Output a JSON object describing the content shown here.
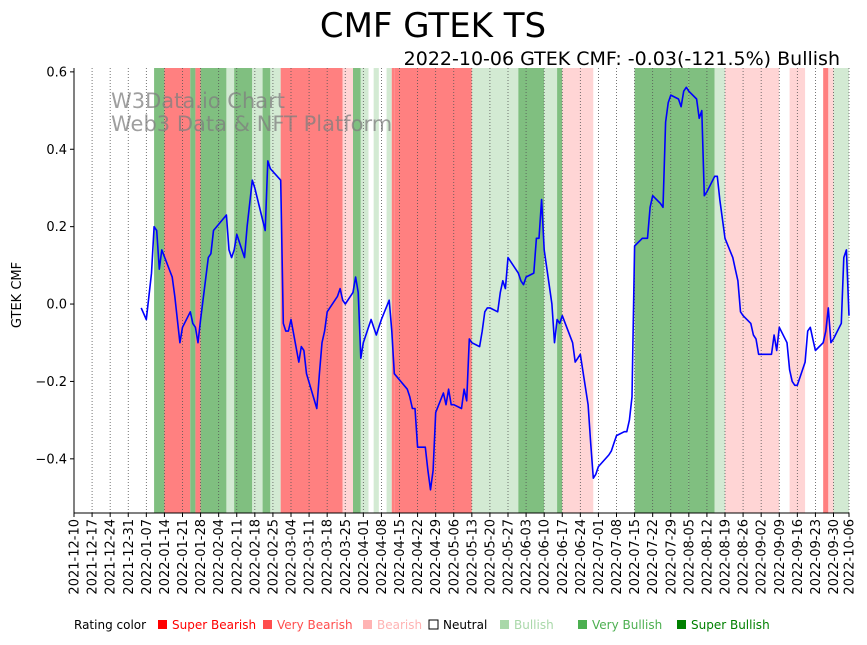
{
  "chart_data": {
    "type": "line",
    "title": "CMF GTEK TS",
    "subtitle": "2022-10-06 GTEK CMF: -0.03(-121.5%) Bullish",
    "ylabel": "GTEK CMF",
    "xlabel": "",
    "xlim": [
      "2021-12-10",
      "2022-10-06"
    ],
    "ylim": [
      -0.54,
      0.61
    ],
    "y_ticks": [
      0.6,
      0.4,
      0.2,
      0.0,
      -0.2,
      -0.4
    ],
    "y_tick_labels": [
      "0.6",
      "0.4",
      "0.2",
      "0.0",
      "−0.2",
      "−0.4"
    ],
    "x_ticks": [
      "2021-12-10",
      "2021-12-17",
      "2021-12-24",
      "2021-12-31",
      "2022-01-07",
      "2022-01-14",
      "2022-01-21",
      "2022-01-28",
      "2022-02-04",
      "2022-02-11",
      "2022-02-18",
      "2022-02-25",
      "2022-03-04",
      "2022-03-11",
      "2022-03-18",
      "2022-03-25",
      "2022-04-01",
      "2022-04-08",
      "2022-04-15",
      "2022-04-22",
      "2022-04-29",
      "2022-05-06",
      "2022-05-13",
      "2022-05-20",
      "2022-05-27",
      "2022-06-03",
      "2022-06-10",
      "2022-06-17",
      "2022-06-24",
      "2022-07-01",
      "2022-07-08",
      "2022-07-15",
      "2022-07-22",
      "2022-07-29",
      "2022-08-05",
      "2022-08-12",
      "2022-08-19",
      "2022-08-26",
      "2022-09-02",
      "2022-09-09",
      "2022-09-16",
      "2022-09-23",
      "2022-09-30",
      "2022-10-06"
    ],
    "watermark": [
      "W3Data.io Chart",
      "Web3 Data & NFT Platform"
    ],
    "series": [
      {
        "name": "GTEK CMF",
        "color": "#0000ff",
        "points": [
          [
            "2022-01-05",
            -0.01
          ],
          [
            "2022-01-07",
            -0.04
          ],
          [
            "2022-01-09",
            0.08
          ],
          [
            "2022-01-10",
            0.2
          ],
          [
            "2022-01-11",
            0.19
          ],
          [
            "2022-01-12",
            0.09
          ],
          [
            "2022-01-13",
            0.14
          ],
          [
            "2022-01-17",
            0.07
          ],
          [
            "2022-01-18",
            0.02
          ],
          [
            "2022-01-20",
            -0.1
          ],
          [
            "2022-01-21",
            -0.06
          ],
          [
            "2022-01-24",
            -0.02
          ],
          [
            "2022-01-25",
            -0.05
          ],
          [
            "2022-01-26",
            -0.06
          ],
          [
            "2022-01-27",
            -0.1
          ],
          [
            "2022-01-28",
            -0.04
          ],
          [
            "2022-01-31",
            0.12
          ],
          [
            "2022-02-01",
            0.13
          ],
          [
            "2022-02-02",
            0.19
          ],
          [
            "2022-02-07",
            0.23
          ],
          [
            "2022-02-08",
            0.14
          ],
          [
            "2022-02-09",
            0.12
          ],
          [
            "2022-02-10",
            0.14
          ],
          [
            "2022-02-11",
            0.18
          ],
          [
            "2022-02-14",
            0.12
          ],
          [
            "2022-02-15",
            0.2
          ],
          [
            "2022-02-17",
            0.32
          ],
          [
            "2022-02-18",
            0.3
          ],
          [
            "2022-02-22",
            0.19
          ],
          [
            "2022-02-23",
            0.37
          ],
          [
            "2022-02-24",
            0.35
          ],
          [
            "2022-02-28",
            0.32
          ],
          [
            "2022-03-01",
            -0.05
          ],
          [
            "2022-03-02",
            -0.07
          ],
          [
            "2022-03-03",
            -0.07
          ],
          [
            "2022-03-04",
            -0.04
          ],
          [
            "2022-03-07",
            -0.15
          ],
          [
            "2022-03-08",
            -0.11
          ],
          [
            "2022-03-09",
            -0.12
          ],
          [
            "2022-03-10",
            -0.18
          ],
          [
            "2022-03-14",
            -0.27
          ],
          [
            "2022-03-15",
            -0.18
          ],
          [
            "2022-03-16",
            -0.1
          ],
          [
            "2022-03-17",
            -0.07
          ],
          [
            "2022-03-18",
            -0.02
          ],
          [
            "2022-03-22",
            0.02
          ],
          [
            "2022-03-23",
            0.04
          ],
          [
            "2022-03-24",
            0.01
          ],
          [
            "2022-03-25",
            0.0
          ],
          [
            "2022-03-28",
            0.03
          ],
          [
            "2022-03-29",
            0.07
          ],
          [
            "2022-03-30",
            0.03
          ],
          [
            "2022-03-31",
            -0.14
          ],
          [
            "2022-04-01",
            -0.1
          ],
          [
            "2022-04-04",
            -0.04
          ],
          [
            "2022-04-05",
            -0.06
          ],
          [
            "2022-04-06",
            -0.08
          ],
          [
            "2022-04-07",
            -0.06
          ],
          [
            "2022-04-08",
            -0.04
          ],
          [
            "2022-04-11",
            0.01
          ],
          [
            "2022-04-12",
            -0.07
          ],
          [
            "2022-04-13",
            -0.18
          ],
          [
            "2022-04-18",
            -0.22
          ],
          [
            "2022-04-19",
            -0.24
          ],
          [
            "2022-04-20",
            -0.27
          ],
          [
            "2022-04-21",
            -0.27
          ],
          [
            "2022-04-22",
            -0.37
          ],
          [
            "2022-04-25",
            -0.37
          ],
          [
            "2022-04-26",
            -0.43
          ],
          [
            "2022-04-27",
            -0.48
          ],
          [
            "2022-04-28",
            -0.43
          ],
          [
            "2022-04-29",
            -0.28
          ],
          [
            "2022-05-02",
            -0.23
          ],
          [
            "2022-05-03",
            -0.26
          ],
          [
            "2022-05-04",
            -0.22
          ],
          [
            "2022-05-05",
            -0.26
          ],
          [
            "2022-05-06",
            -0.26
          ],
          [
            "2022-05-09",
            -0.27
          ],
          [
            "2022-05-10",
            -0.22
          ],
          [
            "2022-05-11",
            -0.25
          ],
          [
            "2022-05-12",
            -0.09
          ],
          [
            "2022-05-13",
            -0.1
          ],
          [
            "2022-05-16",
            -0.11
          ],
          [
            "2022-05-17",
            -0.07
          ],
          [
            "2022-05-18",
            -0.02
          ],
          [
            "2022-05-19",
            -0.01
          ],
          [
            "2022-05-20",
            -0.01
          ],
          [
            "2022-05-23",
            -0.02
          ],
          [
            "2022-05-24",
            0.03
          ],
          [
            "2022-05-25",
            0.06
          ],
          [
            "2022-05-26",
            0.04
          ],
          [
            "2022-05-27",
            0.12
          ],
          [
            "2022-05-31",
            0.08
          ],
          [
            "2022-06-01",
            0.06
          ],
          [
            "2022-06-02",
            0.05
          ],
          [
            "2022-06-03",
            0.07
          ],
          [
            "2022-06-06",
            0.08
          ],
          [
            "2022-06-07",
            0.17
          ],
          [
            "2022-06-08",
            0.17
          ],
          [
            "2022-06-09",
            0.27
          ],
          [
            "2022-06-10",
            0.14
          ],
          [
            "2022-06-13",
            0.0
          ],
          [
            "2022-06-14",
            -0.1
          ],
          [
            "2022-06-15",
            -0.04
          ],
          [
            "2022-06-16",
            -0.05
          ],
          [
            "2022-06-17",
            -0.03
          ],
          [
            "2022-06-21",
            -0.1
          ],
          [
            "2022-06-22",
            -0.15
          ],
          [
            "2022-06-23",
            -0.14
          ],
          [
            "2022-06-24",
            -0.13
          ],
          [
            "2022-06-27",
            -0.26
          ],
          [
            "2022-06-28",
            -0.36
          ],
          [
            "2022-06-29",
            -0.45
          ],
          [
            "2022-06-30",
            -0.44
          ],
          [
            "2022-07-01",
            -0.42
          ],
          [
            "2022-07-05",
            -0.39
          ],
          [
            "2022-07-06",
            -0.38
          ],
          [
            "2022-07-07",
            -0.36
          ],
          [
            "2022-07-08",
            -0.34
          ],
          [
            "2022-07-11",
            -0.33
          ],
          [
            "2022-07-12",
            -0.33
          ],
          [
            "2022-07-13",
            -0.3
          ],
          [
            "2022-07-14",
            -0.24
          ],
          [
            "2022-07-15",
            0.15
          ],
          [
            "2022-07-18",
            0.17
          ],
          [
            "2022-07-19",
            0.17
          ],
          [
            "2022-07-20",
            0.17
          ],
          [
            "2022-07-21",
            0.25
          ],
          [
            "2022-07-22",
            0.28
          ],
          [
            "2022-07-25",
            0.26
          ],
          [
            "2022-07-26",
            0.25
          ],
          [
            "2022-07-27",
            0.47
          ],
          [
            "2022-07-28",
            0.52
          ],
          [
            "2022-07-29",
            0.54
          ],
          [
            "2022-08-01",
            0.53
          ],
          [
            "2022-08-02",
            0.51
          ],
          [
            "2022-08-03",
            0.55
          ],
          [
            "2022-08-04",
            0.56
          ],
          [
            "2022-08-05",
            0.55
          ],
          [
            "2022-08-08",
            0.53
          ],
          [
            "2022-08-09",
            0.48
          ],
          [
            "2022-08-10",
            0.5
          ],
          [
            "2022-08-11",
            0.28
          ],
          [
            "2022-08-12",
            0.29
          ],
          [
            "2022-08-15",
            0.33
          ],
          [
            "2022-08-16",
            0.33
          ],
          [
            "2022-08-17",
            0.27
          ],
          [
            "2022-08-18",
            0.22
          ],
          [
            "2022-08-19",
            0.17
          ],
          [
            "2022-08-22",
            0.12
          ],
          [
            "2022-08-23",
            0.09
          ],
          [
            "2022-08-24",
            0.06
          ],
          [
            "2022-08-25",
            -0.02
          ],
          [
            "2022-08-26",
            -0.03
          ],
          [
            "2022-08-29",
            -0.05
          ],
          [
            "2022-08-30",
            -0.08
          ],
          [
            "2022-08-31",
            -0.09
          ],
          [
            "2022-09-01",
            -0.13
          ],
          [
            "2022-09-02",
            -0.13
          ],
          [
            "2022-09-06",
            -0.13
          ],
          [
            "2022-09-07",
            -0.08
          ],
          [
            "2022-09-08",
            -0.12
          ],
          [
            "2022-09-09",
            -0.06
          ],
          [
            "2022-09-12",
            -0.1
          ],
          [
            "2022-09-13",
            -0.17
          ],
          [
            "2022-09-14",
            -0.2
          ],
          [
            "2022-09-15",
            -0.21
          ],
          [
            "2022-09-16",
            -0.21
          ],
          [
            "2022-09-19",
            -0.15
          ],
          [
            "2022-09-20",
            -0.07
          ],
          [
            "2022-09-21",
            -0.06
          ],
          [
            "2022-09-22",
            -0.09
          ],
          [
            "2022-09-23",
            -0.12
          ],
          [
            "2022-09-26",
            -0.1
          ],
          [
            "2022-09-27",
            -0.07
          ],
          [
            "2022-09-28",
            -0.01
          ],
          [
            "2022-09-29",
            -0.1
          ],
          [
            "2022-09-30",
            -0.09
          ],
          [
            "2022-10-03",
            -0.05
          ],
          [
            "2022-10-04",
            0.12
          ],
          [
            "2022-10-05",
            0.14
          ],
          [
            "2022-10-06",
            -0.03
          ]
        ]
      }
    ],
    "rating_bands": [
      {
        "start": "2022-01-10",
        "end": "2022-01-14",
        "rating": "Very Bullish"
      },
      {
        "start": "2022-01-14",
        "end": "2022-01-24",
        "rating": "Very Bearish"
      },
      {
        "start": "2022-01-24",
        "end": "2022-01-26",
        "rating": "Very Bullish"
      },
      {
        "start": "2022-01-26",
        "end": "2022-01-28",
        "rating": "Very Bearish"
      },
      {
        "start": "2022-01-28",
        "end": "2022-02-07",
        "rating": "Very Bullish"
      },
      {
        "start": "2022-02-07",
        "end": "2022-02-10",
        "rating": "Bullish"
      },
      {
        "start": "2022-02-10",
        "end": "2022-02-17",
        "rating": "Very Bullish"
      },
      {
        "start": "2022-02-17",
        "end": "2022-02-21",
        "rating": "Bullish"
      },
      {
        "start": "2022-02-21",
        "end": "2022-02-24",
        "rating": "Very Bullish"
      },
      {
        "start": "2022-02-24",
        "end": "2022-02-28",
        "rating": "Bullish"
      },
      {
        "start": "2022-02-28",
        "end": "2022-03-24",
        "rating": "Very Bearish"
      },
      {
        "start": "2022-03-24",
        "end": "2022-03-28",
        "rating": "Bearish"
      },
      {
        "start": "2022-03-28",
        "end": "2022-03-31",
        "rating": "Very Bullish"
      },
      {
        "start": "2022-03-31",
        "end": "2022-04-03",
        "rating": "Bullish"
      },
      {
        "start": "2022-04-05",
        "end": "2022-04-07",
        "rating": "Bullish"
      },
      {
        "start": "2022-04-10",
        "end": "2022-04-12",
        "rating": "Bullish"
      },
      {
        "start": "2022-04-12",
        "end": "2022-04-13",
        "rating": "Very Bearish"
      },
      {
        "start": "2022-04-13",
        "end": "2022-05-13",
        "rating": "Very Bearish"
      },
      {
        "start": "2022-05-13",
        "end": "2022-05-31",
        "rating": "Bullish"
      },
      {
        "start": "2022-05-31",
        "end": "2022-06-10",
        "rating": "Very Bullish"
      },
      {
        "start": "2022-06-10",
        "end": "2022-06-15",
        "rating": "Bullish"
      },
      {
        "start": "2022-06-15",
        "end": "2022-06-17",
        "rating": "Very Bullish"
      },
      {
        "start": "2022-06-17",
        "end": "2022-06-29",
        "rating": "Bearish"
      },
      {
        "start": "2022-07-15",
        "end": "2022-08-05",
        "rating": "Very Bullish"
      },
      {
        "start": "2022-08-05",
        "end": "2022-08-15",
        "rating": "Very Bullish"
      },
      {
        "start": "2022-08-15",
        "end": "2022-08-19",
        "rating": "Bullish"
      },
      {
        "start": "2022-08-19",
        "end": "2022-09-09",
        "rating": "Bearish"
      },
      {
        "start": "2022-09-13",
        "end": "2022-09-19",
        "rating": "Bearish"
      },
      {
        "start": "2022-09-26",
        "end": "2022-09-28",
        "rating": "Very Bearish"
      },
      {
        "start": "2022-09-28",
        "end": "2022-09-30",
        "rating": "Bearish"
      },
      {
        "start": "2022-09-30",
        "end": "2022-10-06",
        "rating": "Bullish"
      }
    ],
    "legend": {
      "label": "Rating color",
      "items": [
        {
          "label": "Super Bearish",
          "color": "#ff0000",
          "text_color": "#ff0000"
        },
        {
          "label": "Very Bearish",
          "color": "#ff4d4d",
          "text_color": "#ff4d4d"
        },
        {
          "label": "Bearish",
          "color": "#ffb3b3",
          "text_color": "#ffb3b3"
        },
        {
          "label": "Neutral",
          "color": "#ffffff",
          "text_color": "#000000"
        },
        {
          "label": "Bullish",
          "color": "#a9d8a9",
          "text_color": "#a9d8a9"
        },
        {
          "label": "Very Bullish",
          "color": "#4caf50",
          "text_color": "#4caf50"
        },
        {
          "label": "Super Bullish",
          "color": "#008000",
          "text_color": "#008000"
        }
      ]
    },
    "rating_fill": {
      "Super Bearish": "#ff0000",
      "Very Bearish": "#ff8080",
      "Bearish": "#ffd5d5",
      "Neutral": "#ffffff",
      "Bullish": "#d3ead3",
      "Very Bullish": "#80bf80",
      "Super Bullish": "#008000"
    },
    "line_color": "#0000ff"
  }
}
